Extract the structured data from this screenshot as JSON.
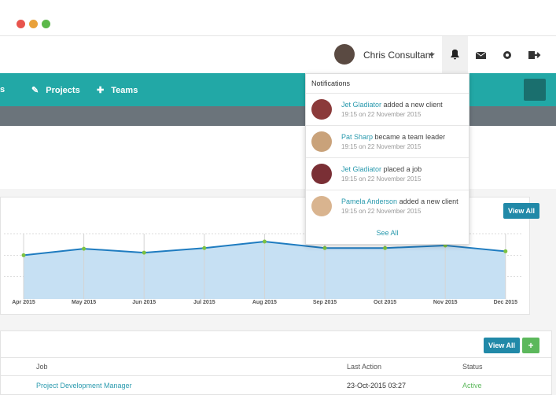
{
  "header": {
    "user": "Chris Consultant"
  },
  "nav": {
    "items": [
      "s",
      "Projects",
      "Teams"
    ]
  },
  "notifications": {
    "title": "Notifications",
    "items": [
      {
        "actor": "Jet Gladiator",
        "action": "added a new client",
        "time": "19:15 on 22 November 2015"
      },
      {
        "actor": "Pat Sharp",
        "action": "became a team leader",
        "time": "19:15 on 22 November 2015"
      },
      {
        "actor": "Jet Gladiator",
        "action": "placed a job",
        "time": "19:15 on 22 November 2015"
      },
      {
        "actor": "Pamela Anderson",
        "action": "added a new client",
        "time": "19:15 on 22 November 2015"
      }
    ],
    "see_all": "See All"
  },
  "chart_data": {
    "type": "line",
    "categories": [
      "Apr 2015",
      "May 2015",
      "Jun 2015",
      "Jul 2015",
      "Aug 2015",
      "Sep 2015",
      "Oct 2015",
      "Nov 2015",
      "Dec 2015"
    ],
    "values": [
      67,
      77,
      71,
      78,
      88,
      78,
      78,
      82,
      73
    ],
    "ylim": [
      0,
      100
    ],
    "color": "#1f7cc0",
    "fill": "#c6e0f3",
    "point_color": "#7cc242"
  },
  "panel": {
    "view_all": "View All"
  },
  "table": {
    "view_all": "View All",
    "add": "+",
    "columns": [
      "Job",
      "Last Action",
      "Status"
    ],
    "rows": [
      [
        "Project Development Manager",
        "23-Oct-2015 03:27",
        "Active"
      ]
    ]
  }
}
